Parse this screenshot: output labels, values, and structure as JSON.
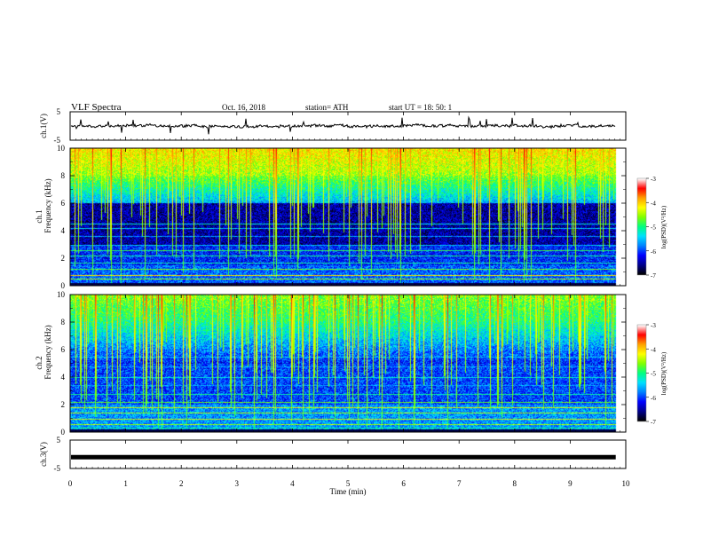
{
  "header": {
    "title": "VLF  Spectra",
    "date": "Oct. 16, 2018",
    "station": "station= ATH",
    "start": "start  UT  =    18: 50: 1"
  },
  "chart_data": {
    "type": "heatmap",
    "x_label": "Time  (min)",
    "x_range": [
      0,
      10
    ],
    "x_ticks": [
      {
        "value": 0,
        "label": "0"
      },
      {
        "value": 1,
        "label": "1"
      },
      {
        "value": 2,
        "label": "2"
      },
      {
        "value": 3,
        "label": "3"
      },
      {
        "value": 4,
        "label": "4"
      },
      {
        "value": 5,
        "label": "5"
      },
      {
        "value": 6,
        "label": "6"
      },
      {
        "value": 7,
        "label": "7"
      },
      {
        "value": 8,
        "label": "8"
      },
      {
        "value": 9,
        "label": "9"
      },
      {
        "value": 10,
        "label": "10"
      }
    ],
    "data_end_min": 9.82,
    "waveform_panels": [
      {
        "label": "ch.1(V)",
        "y_range": [
          -5,
          5
        ],
        "y_ticks": [
          {
            "value": 5,
            "label": "5"
          },
          {
            "value": -5,
            "label": "-5"
          }
        ],
        "signal": "noisy",
        "level": 0
      },
      {
        "label": "ch.3(V)",
        "y_range": [
          -5,
          5
        ],
        "y_ticks": [
          {
            "value": 5,
            "label": "5"
          },
          {
            "value": -5,
            "label": "-5"
          }
        ],
        "signal": "flat",
        "level": -1
      }
    ],
    "spectrogram_panels": [
      {
        "channel_label": "ch.1",
        "y_label": "Frequency  (kHz)",
        "y_range": [
          0,
          10
        ],
        "y_ticks": [
          {
            "value": 0,
            "label": "0"
          },
          {
            "value": 2,
            "label": "2"
          },
          {
            "value": 4,
            "label": "4"
          },
          {
            "value": 6,
            "label": "6"
          },
          {
            "value": 8,
            "label": "8"
          },
          {
            "value": 10,
            "label": "10"
          }
        ]
      },
      {
        "channel_label": "ch.2",
        "y_label": "Frequency  (kHz)",
        "y_range": [
          0,
          10
        ],
        "y_ticks": [
          {
            "value": 0,
            "label": "0"
          },
          {
            "value": 2,
            "label": "2"
          },
          {
            "value": 4,
            "label": "4"
          },
          {
            "value": 6,
            "label": "6"
          },
          {
            "value": 8,
            "label": "8"
          },
          {
            "value": 10,
            "label": "10"
          }
        ]
      }
    ],
    "colorbar": {
      "label": "log(PSD)(V²/Hz)",
      "range": [
        -7,
        -3
      ],
      "ticks": [
        {
          "value": -3,
          "label": "-3"
        },
        {
          "value": -4,
          "label": "-4"
        },
        {
          "value": -5,
          "label": "-5"
        },
        {
          "value": -6,
          "label": "-6"
        },
        {
          "value": -7,
          "label": "-7"
        }
      ],
      "colors": [
        "#000000",
        "#00008b",
        "#0000ff",
        "#0080ff",
        "#00e0ff",
        "#00ff80",
        "#80ff00",
        "#ffff00",
        "#ffa000",
        "#ff0000",
        "#ffffff"
      ]
    }
  }
}
